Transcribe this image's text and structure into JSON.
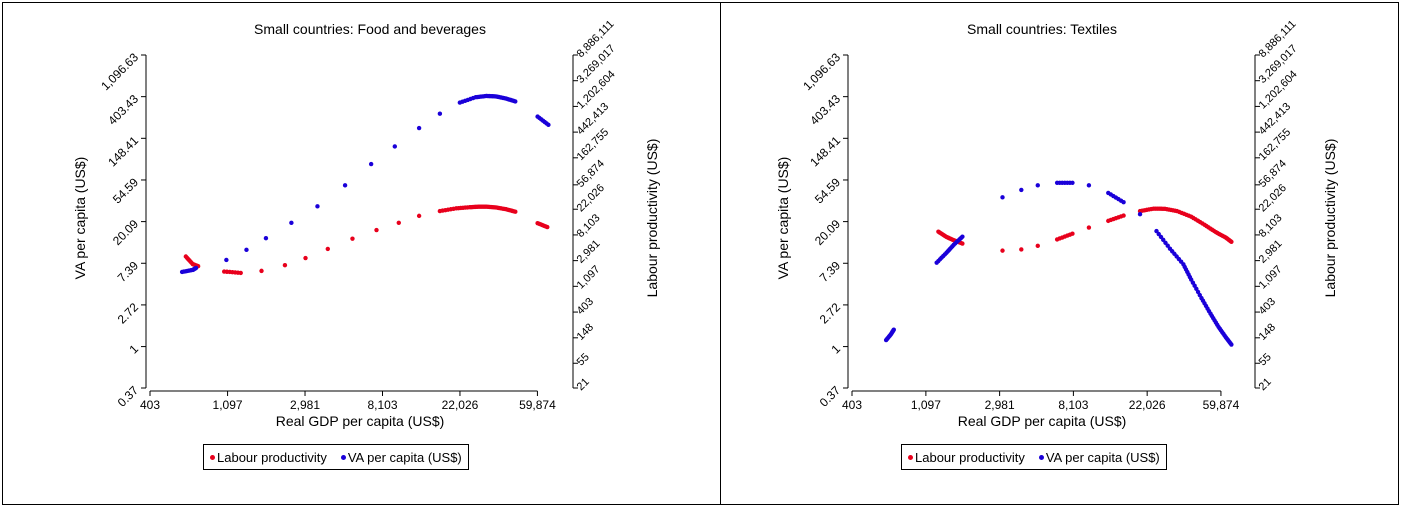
{
  "colors": {
    "labour": "#e8001c",
    "va": "#1a00d9",
    "axis": "#000000"
  },
  "chart_data": [
    {
      "type": "scatter",
      "title": "Small countries: Food and beverages",
      "xlabel": "Real GDP per capita (US$)",
      "ylabel": "VA per capita (US$)",
      "y2label": "Labour productivity (US$)",
      "x_scale": "log",
      "y_scale": "log",
      "xlim": [
        403,
        90000
      ],
      "ylim": [
        0.37,
        1096.63
      ],
      "y2lim": [
        21,
        8886111
      ],
      "x_ticks": [
        403,
        1097,
        2981,
        8103,
        22026,
        59874
      ],
      "x_tick_labels": [
        "403",
        "1,097",
        "2,981",
        "8,103",
        "22,026",
        "59,874"
      ],
      "y_ticks": [
        0.37,
        1,
        2.72,
        7.39,
        20.09,
        54.59,
        148.41,
        403.43,
        1096.63
      ],
      "y_tick_labels": [
        "0.37",
        "1",
        "2.72",
        "7.39",
        "20.09",
        "54.59",
        "148.41",
        "403.43",
        "1,096.63"
      ],
      "y2_ticks": [
        21,
        55,
        148,
        403,
        1097,
        2981,
        8103,
        22026,
        56874,
        162755,
        442413,
        1202604,
        3269017,
        8886111
      ],
      "y2_tick_labels": [
        "21",
        "55",
        "148",
        "403",
        "1,097",
        "2,981",
        "8,103",
        "22,026",
        "56,874",
        "162,755",
        "442,413",
        "1,202,604",
        "3,269,017",
        "8,886,111"
      ],
      "legend": [
        "Labour productivity",
        "VA per capita (US$)"
      ],
      "legend_position": "bottom",
      "series": [
        {
          "name": "Labour productivity",
          "axis": "y2",
          "color_key": "labour",
          "points": [
            [
              640,
              3500
            ],
            [
              700,
              2600
            ],
            [
              750,
              2400
            ],
            [
              1050,
              1950
            ],
            [
              1300,
              1850
            ],
            [
              1700,
              2000
            ],
            [
              2300,
              2500
            ],
            [
              3000,
              3300
            ],
            [
              4000,
              4700
            ],
            [
              5500,
              7000
            ],
            [
              7500,
              9800
            ],
            [
              10000,
              13000
            ],
            [
              13000,
              17000
            ],
            [
              17000,
              20500
            ],
            [
              21000,
              22800
            ],
            [
              25000,
              23800
            ],
            [
              28000,
              24300
            ],
            [
              31000,
              24300
            ],
            [
              35000,
              23600
            ],
            [
              40000,
              22000
            ],
            [
              45000,
              20000
            ],
            [
              60000,
              12800
            ],
            [
              68000,
              11000
            ]
          ]
        },
        {
          "name": "VA per capita (US$)",
          "axis": "y",
          "color_key": "va",
          "points": [
            [
              610,
              6.0
            ],
            [
              700,
              6.3
            ],
            [
              730,
              6.6
            ],
            [
              1080,
              8.0
            ],
            [
              1400,
              10.2
            ],
            [
              1800,
              13.5
            ],
            [
              2500,
              19.5
            ],
            [
              3500,
              29
            ],
            [
              5000,
              48
            ],
            [
              7000,
              80
            ],
            [
              9500,
              122
            ],
            [
              13000,
              190
            ],
            [
              17000,
              268
            ],
            [
              22000,
              350
            ],
            [
              27000,
              398
            ],
            [
              31000,
              410
            ],
            [
              35000,
              406
            ],
            [
              40000,
              385
            ],
            [
              45000,
              360
            ],
            [
              60000,
              250
            ],
            [
              69000,
              205
            ]
          ]
        }
      ]
    },
    {
      "type": "scatter",
      "title": "Small countries: Textiles",
      "xlabel": "Real GDP per capita (US$)",
      "ylabel": "VA per capita (US$)",
      "y2label": "Labour productivity (US$)",
      "x_scale": "log",
      "y_scale": "log",
      "xlim": [
        403,
        90000
      ],
      "ylim": [
        0.37,
        1096.63
      ],
      "y2lim": [
        21,
        8886111
      ],
      "x_ticks": [
        403,
        1097,
        2981,
        8103,
        22026,
        59874
      ],
      "x_tick_labels": [
        "403",
        "1,097",
        "2,981",
        "8,103",
        "22,026",
        "59,874"
      ],
      "y_ticks": [
        0.37,
        1,
        2.72,
        7.39,
        20.09,
        54.59,
        148.41,
        403.43,
        1096.63
      ],
      "y_tick_labels": [
        "0.37",
        "1",
        "2.72",
        "7.39",
        "20.09",
        "54.59",
        "148.41",
        "403.43",
        "1,096.63"
      ],
      "y2_ticks": [
        21,
        55,
        148,
        403,
        1097,
        2981,
        8103,
        22026,
        56874,
        162755,
        442413,
        1202604,
        3269017,
        8886111
      ],
      "y2_tick_labels": [
        "21",
        "55",
        "148",
        "403",
        "1,097",
        "2,981",
        "8,103",
        "22,026",
        "56,874",
        "162,755",
        "442,413",
        "1,202,604",
        "3,269,017",
        "8,886,111"
      ],
      "legend": [
        "Labour productivity",
        "VA per capita (US$)"
      ],
      "legend_position": "bottom",
      "series": [
        {
          "name": "Labour productivity",
          "axis": "y2",
          "color_key": "labour",
          "points": [
            [
              1300,
              9200
            ],
            [
              1450,
              7500
            ],
            [
              1600,
              6600
            ],
            [
              1800,
              5800
            ],
            [
              3100,
              4400
            ],
            [
              4000,
              4600
            ],
            [
              5000,
              5300
            ],
            [
              6500,
              6800
            ],
            [
              8000,
              8500
            ],
            [
              10000,
              10800
            ],
            [
              13000,
              14000
            ],
            [
              16000,
              17200
            ],
            [
              20000,
              20500
            ],
            [
              24000,
              22500
            ],
            [
              28000,
              22400
            ],
            [
              33000,
              20500
            ],
            [
              40000,
              16500
            ],
            [
              48000,
              12000
            ],
            [
              56000,
              9000
            ],
            [
              64000,
              7300
            ],
            [
              69000,
              6200
            ]
          ]
        },
        {
          "name": "VA per capita (US$)",
          "axis": "y",
          "color_key": "va",
          "points": [
            [
              640,
              1.17
            ],
            [
              680,
              1.33
            ],
            [
              710,
              1.5
            ],
            [
              1270,
              7.5
            ],
            [
              1450,
              9.5
            ],
            [
              1600,
              11.5
            ],
            [
              1800,
              14
            ],
            [
              3100,
              36
            ],
            [
              4000,
              43
            ],
            [
              5000,
              48
            ],
            [
              6500,
              51
            ],
            [
              8000,
              51
            ],
            [
              10000,
              48
            ],
            [
              13000,
              40
            ],
            [
              16000,
              32
            ],
            [
              20000,
              24
            ],
            [
              25000,
              16
            ],
            [
              30000,
              10.5
            ],
            [
              36000,
              7.2
            ],
            [
              40000,
              5.0
            ],
            [
              46000,
              3.2
            ],
            [
              52000,
              2.2
            ],
            [
              58000,
              1.6
            ],
            [
              64000,
              1.25
            ],
            [
              69000,
              1.05
            ]
          ]
        }
      ]
    }
  ]
}
